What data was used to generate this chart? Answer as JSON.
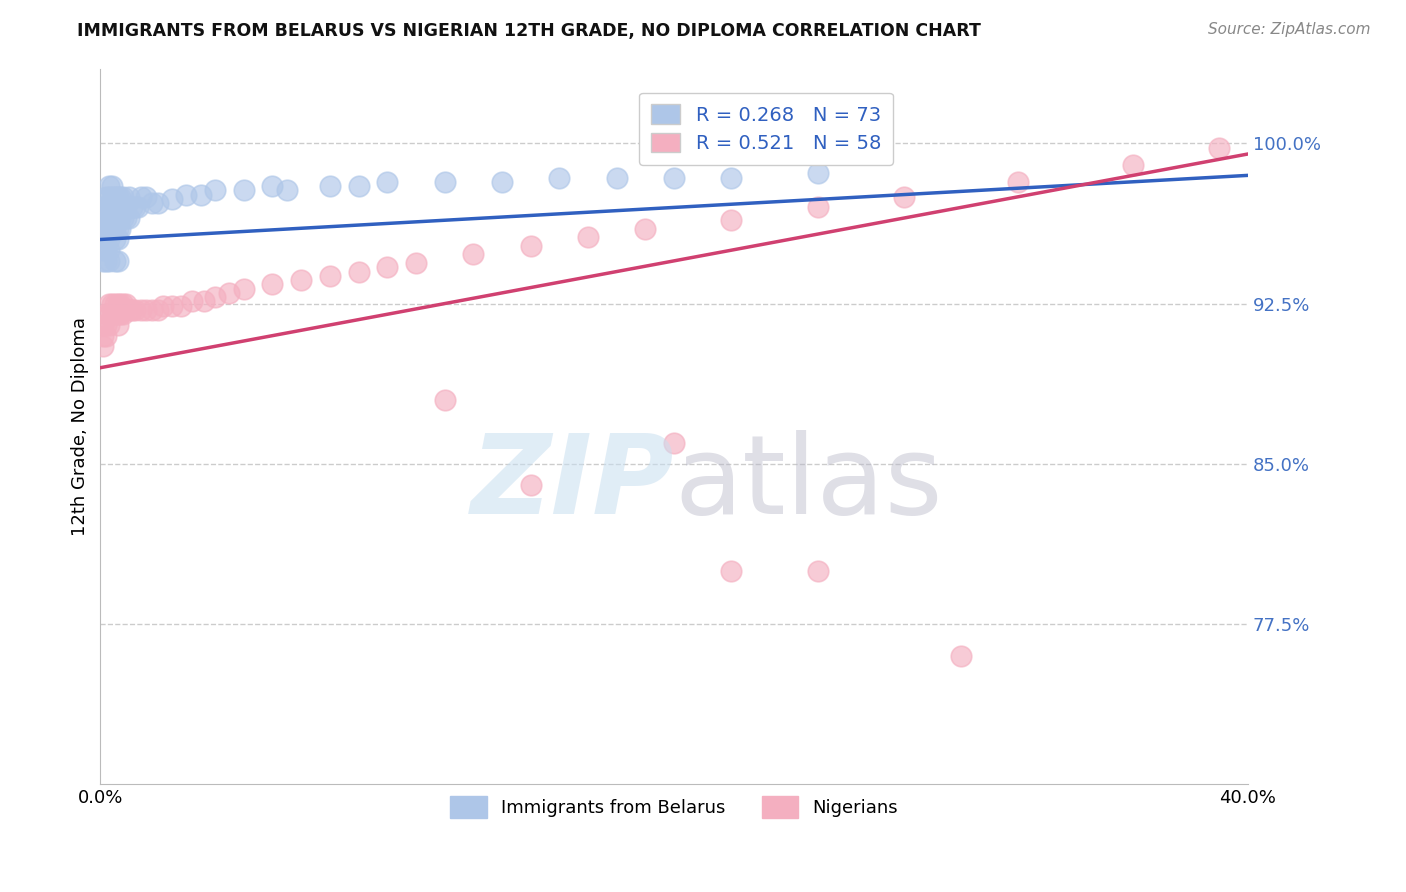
{
  "title": "IMMIGRANTS FROM BELARUS VS NIGERIAN 12TH GRADE, NO DIPLOMA CORRELATION CHART",
  "source": "Source: ZipAtlas.com",
  "ylabel": "12th Grade, No Diploma",
  "ytick_labels": [
    "100.0%",
    "92.5%",
    "85.0%",
    "77.5%"
  ],
  "ytick_values": [
    1.0,
    0.925,
    0.85,
    0.775
  ],
  "xtick_labels": [
    "0.0%",
    "40.0%"
  ],
  "xtick_values": [
    0.0,
    0.4
  ],
  "legend_entries": [
    {
      "label": "Immigrants from Belarus",
      "color": "#aec6e8",
      "R": 0.268,
      "N": 73
    },
    {
      "label": "Nigerians",
      "color": "#f4afc0",
      "R": 0.521,
      "N": 58
    }
  ],
  "blue_line_color": "#3060c0",
  "pink_line_color": "#d04070",
  "blue_line": {
    "x0": 0.0,
    "x1": 0.4,
    "y0": 0.955,
    "y1": 0.985
  },
  "pink_line": {
    "x0": 0.0,
    "x1": 0.4,
    "y0": 0.895,
    "y1": 0.995
  },
  "background_color": "#ffffff",
  "grid_color": "#cccccc",
  "xmin": 0.0,
  "xmax": 0.4,
  "ymin": 0.7,
  "ymax": 1.035,
  "blue_x": [
    0.001,
    0.001,
    0.001,
    0.001,
    0.001,
    0.001,
    0.002,
    0.002,
    0.002,
    0.002,
    0.002,
    0.002,
    0.002,
    0.003,
    0.003,
    0.003,
    0.003,
    0.003,
    0.003,
    0.003,
    0.003,
    0.004,
    0.004,
    0.004,
    0.004,
    0.004,
    0.005,
    0.005,
    0.005,
    0.005,
    0.005,
    0.005,
    0.006,
    0.006,
    0.006,
    0.006,
    0.006,
    0.006,
    0.007,
    0.007,
    0.007,
    0.007,
    0.008,
    0.008,
    0.008,
    0.009,
    0.009,
    0.01,
    0.01,
    0.011,
    0.012,
    0.013,
    0.014,
    0.016,
    0.018,
    0.02,
    0.025,
    0.03,
    0.035,
    0.04,
    0.05,
    0.06,
    0.065,
    0.08,
    0.09,
    0.1,
    0.12,
    0.14,
    0.16,
    0.18,
    0.2,
    0.22,
    0.25
  ],
  "blue_y": [
    0.97,
    0.965,
    0.96,
    0.955,
    0.95,
    0.945,
    0.975,
    0.97,
    0.965,
    0.96,
    0.955,
    0.95,
    0.945,
    0.98,
    0.975,
    0.97,
    0.965,
    0.96,
    0.955,
    0.95,
    0.945,
    0.98,
    0.975,
    0.97,
    0.965,
    0.96,
    0.975,
    0.97,
    0.965,
    0.96,
    0.955,
    0.945,
    0.975,
    0.97,
    0.965,
    0.96,
    0.955,
    0.945,
    0.975,
    0.97,
    0.965,
    0.96,
    0.975,
    0.97,
    0.965,
    0.97,
    0.965,
    0.975,
    0.965,
    0.97,
    0.97,
    0.97,
    0.975,
    0.975,
    0.972,
    0.972,
    0.974,
    0.976,
    0.976,
    0.978,
    0.978,
    0.98,
    0.978,
    0.98,
    0.98,
    0.982,
    0.982,
    0.982,
    0.984,
    0.984,
    0.984,
    0.984,
    0.986
  ],
  "pink_x": [
    0.001,
    0.001,
    0.001,
    0.002,
    0.002,
    0.002,
    0.003,
    0.003,
    0.003,
    0.004,
    0.004,
    0.005,
    0.005,
    0.006,
    0.006,
    0.006,
    0.007,
    0.007,
    0.008,
    0.008,
    0.009,
    0.01,
    0.011,
    0.012,
    0.014,
    0.016,
    0.018,
    0.02,
    0.022,
    0.025,
    0.028,
    0.032,
    0.036,
    0.04,
    0.045,
    0.05,
    0.06,
    0.07,
    0.08,
    0.09,
    0.1,
    0.11,
    0.13,
    0.15,
    0.17,
    0.19,
    0.22,
    0.25,
    0.28,
    0.32,
    0.36,
    0.39,
    0.15,
    0.22,
    0.3,
    0.2,
    0.25,
    0.12
  ],
  "pink_y": [
    0.915,
    0.91,
    0.905,
    0.92,
    0.915,
    0.91,
    0.925,
    0.92,
    0.915,
    0.925,
    0.92,
    0.925,
    0.92,
    0.925,
    0.92,
    0.915,
    0.925,
    0.92,
    0.925,
    0.92,
    0.925,
    0.922,
    0.922,
    0.922,
    0.922,
    0.922,
    0.922,
    0.922,
    0.924,
    0.924,
    0.924,
    0.926,
    0.926,
    0.928,
    0.93,
    0.932,
    0.934,
    0.936,
    0.938,
    0.94,
    0.942,
    0.944,
    0.948,
    0.952,
    0.956,
    0.96,
    0.964,
    0.97,
    0.975,
    0.982,
    0.99,
    0.998,
    0.84,
    0.8,
    0.76,
    0.86,
    0.8,
    0.88
  ]
}
